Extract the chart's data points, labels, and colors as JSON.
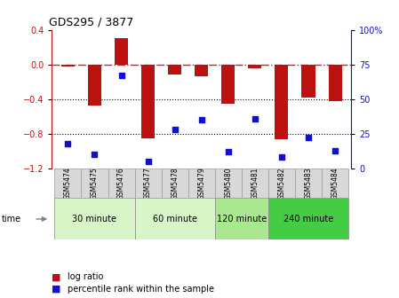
{
  "title": "GDS295 / 3877",
  "samples": [
    "GSM5474",
    "GSM5475",
    "GSM5476",
    "GSM5477",
    "GSM5478",
    "GSM5479",
    "GSM5480",
    "GSM5481",
    "GSM5482",
    "GSM5483",
    "GSM5484"
  ],
  "log_ratio": [
    -0.02,
    -0.47,
    0.3,
    -0.85,
    -0.12,
    -0.14,
    -0.45,
    -0.04,
    -0.86,
    -0.38,
    -0.42
  ],
  "percentile_rank": [
    18,
    10,
    67,
    5,
    28,
    35,
    12,
    36,
    8,
    22,
    13
  ],
  "groups": [
    {
      "label": "30 minute",
      "start": 0,
      "end": 2,
      "color": "#d8f5c8"
    },
    {
      "label": "60 minute",
      "start": 3,
      "end": 5,
      "color": "#d8f5c8"
    },
    {
      "label": "120 minute",
      "start": 6,
      "end": 7,
      "color": "#aae890"
    },
    {
      "label": "240 minute",
      "start": 8,
      "end": 10,
      "color": "#44cc44"
    }
  ],
  "ylim_left": [
    -1.2,
    0.4
  ],
  "ylim_right": [
    0,
    100
  ],
  "bar_color": "#bb1111",
  "scatter_color": "#1111cc",
  "ref_line_color": "#cc2222",
  "left_yticks": [
    -1.2,
    -0.8,
    -0.4,
    0.0,
    0.4
  ],
  "right_yticks": [
    0,
    25,
    50,
    75,
    100
  ],
  "bar_width": 0.5,
  "sample_bg": "#d8d8d8",
  "group_colors": [
    "#d8f5c8",
    "#d8f5c8",
    "#aae890",
    "#44cc44"
  ]
}
